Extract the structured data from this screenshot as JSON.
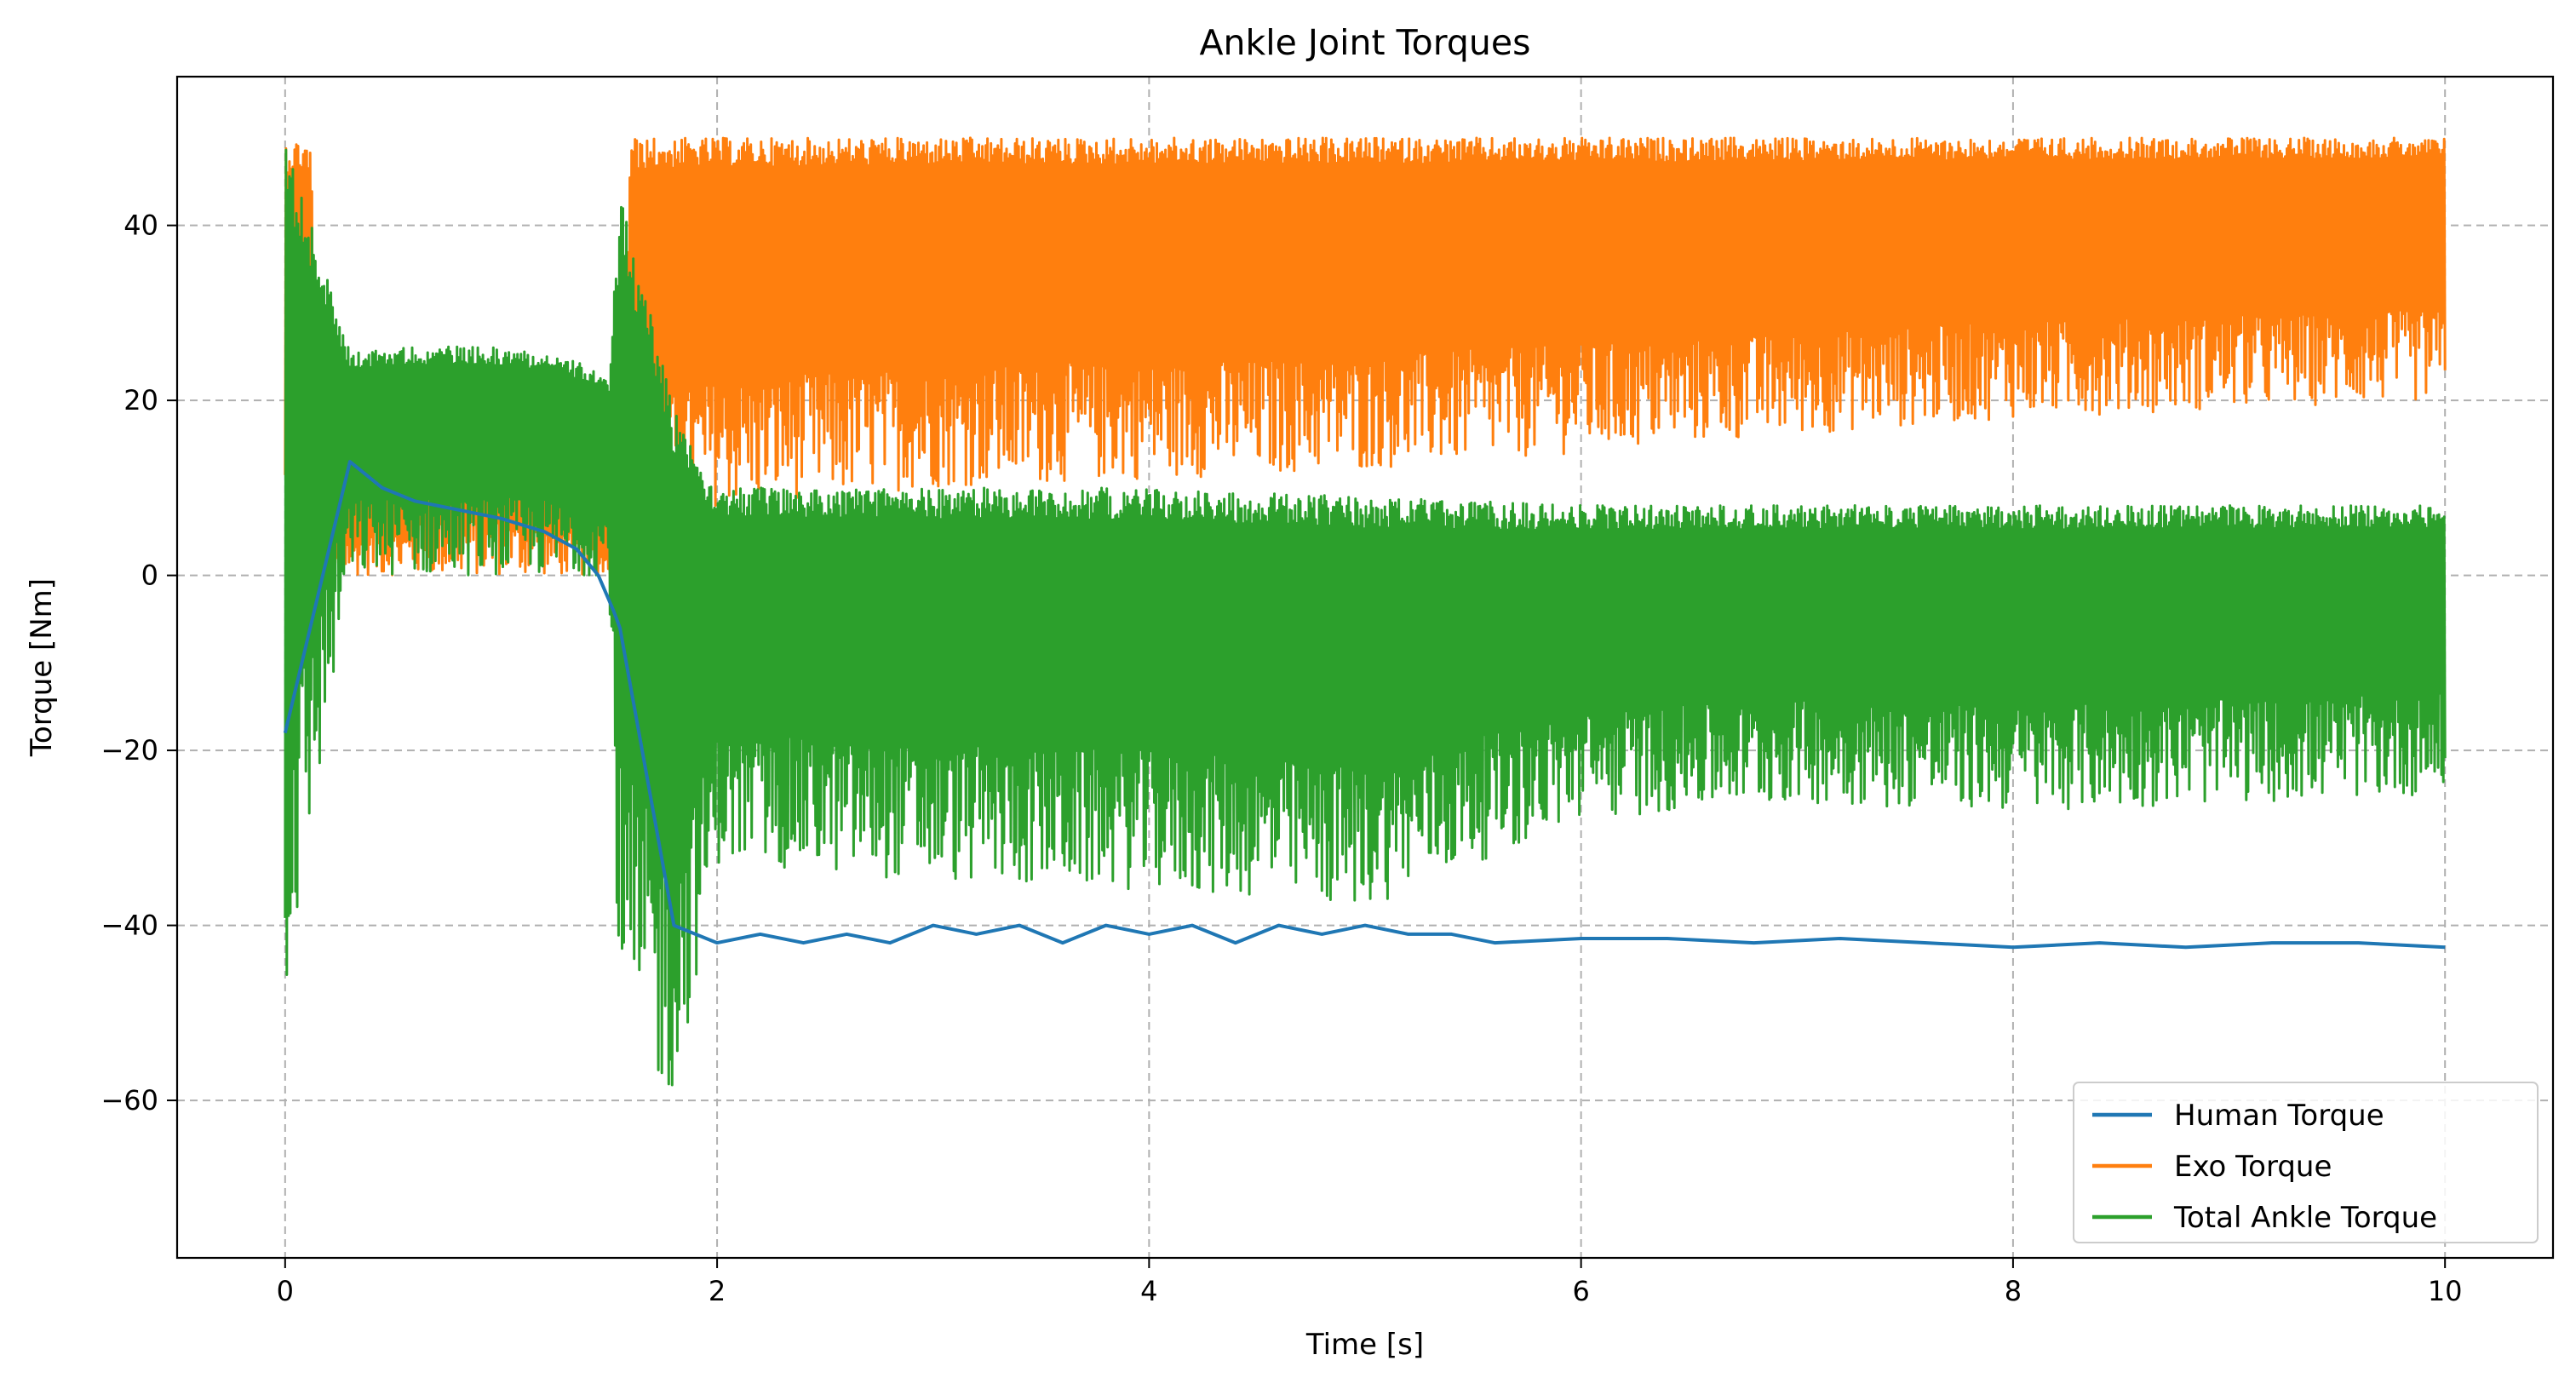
{
  "chart_data": {
    "type": "line",
    "title": "Ankle Joint Torques",
    "xlabel": "Time [s]",
    "ylabel": "Torque [Nm]",
    "xlim": [
      -0.5,
      10.5
    ],
    "ylim": [
      -78,
      57
    ],
    "xticks": [
      0,
      2,
      4,
      6,
      8,
      10
    ],
    "yticks": [
      -60,
      -40,
      -20,
      0,
      20,
      40
    ],
    "xtick_labels": [
      "0",
      "2",
      "4",
      "6",
      "8",
      "10"
    ],
    "ytick_labels": [
      "−60",
      "−40",
      "−20",
      "0",
      "20",
      "40"
    ],
    "grid": true,
    "legend_position": "lower-right",
    "series": [
      {
        "name": "Human Torque",
        "color": "#1f77b4",
        "x": [
          0.0,
          0.3,
          0.45,
          0.6,
          0.8,
          1.0,
          1.2,
          1.35,
          1.45,
          1.52,
          1.55,
          1.8,
          2.0,
          2.2,
          2.4,
          2.6,
          2.8,
          3.0,
          3.2,
          3.4,
          3.6,
          3.8,
          4.0,
          4.2,
          4.4,
          4.6,
          4.8,
          5.0,
          5.2,
          5.4,
          5.6,
          6.0,
          6.4,
          6.8,
          7.2,
          7.6,
          8.0,
          8.4,
          8.8,
          9.2,
          9.6,
          10.0
        ],
        "values": [
          -18,
          13,
          10,
          8.5,
          7.5,
          6.5,
          5,
          3,
          0,
          -4,
          -6,
          -40,
          -42,
          -41,
          -42,
          -41,
          -42,
          -40,
          -41,
          -40,
          -42,
          -40,
          -41,
          -40,
          -42,
          -40,
          -41,
          -40,
          -41,
          -41,
          -42,
          -41.5,
          -41.5,
          -42,
          -41.5,
          -42,
          -42.5,
          -42,
          -42.5,
          -42,
          -42,
          -42.5
        ],
        "style": "line"
      },
      {
        "name": "Exo Torque",
        "color": "#ff7f0e",
        "x": [
          0.0,
          0.12,
          0.16,
          0.28,
          0.5,
          0.7,
          0.9,
          1.1,
          1.3,
          1.45,
          1.55,
          1.6,
          2.0,
          3.0,
          4.0,
          5.0,
          6.0,
          7.0,
          8.0,
          9.0,
          10.0
        ],
        "values": [
          50,
          50,
          -5,
          15,
          16,
          18,
          19,
          18.5,
          15,
          10,
          5,
          50,
          50,
          50,
          50,
          50,
          50,
          50,
          50,
          50,
          50
        ],
        "lower": [
          0,
          0,
          0,
          0,
          0,
          0,
          0,
          0,
          0,
          0,
          0,
          3,
          8,
          10,
          11,
          12,
          14,
          16,
          18,
          19,
          20
        ],
        "style": "band"
      },
      {
        "name": "Total Ankle Torque",
        "color": "#2ca02c",
        "x": [
          0.0,
          0.3,
          0.5,
          0.8,
          1.0,
          1.2,
          1.4,
          1.5,
          1.55,
          1.8,
          2.0,
          3.0,
          4.0,
          5.0,
          6.0,
          7.0,
          8.0,
          9.0,
          10.0
        ],
        "values": [
          50,
          25.5,
          26,
          26.2,
          26,
          25.5,
          24,
          22,
          44,
          20,
          10,
          10,
          10,
          9,
          8,
          8,
          8,
          8,
          8
        ],
        "lower": [
          -50,
          0,
          0,
          0,
          0,
          0,
          0,
          0,
          -56,
          -60,
          -33,
          -35,
          -36,
          -38,
          -28,
          -26,
          -27,
          -26,
          -25
        ],
        "style": "band"
      }
    ]
  }
}
